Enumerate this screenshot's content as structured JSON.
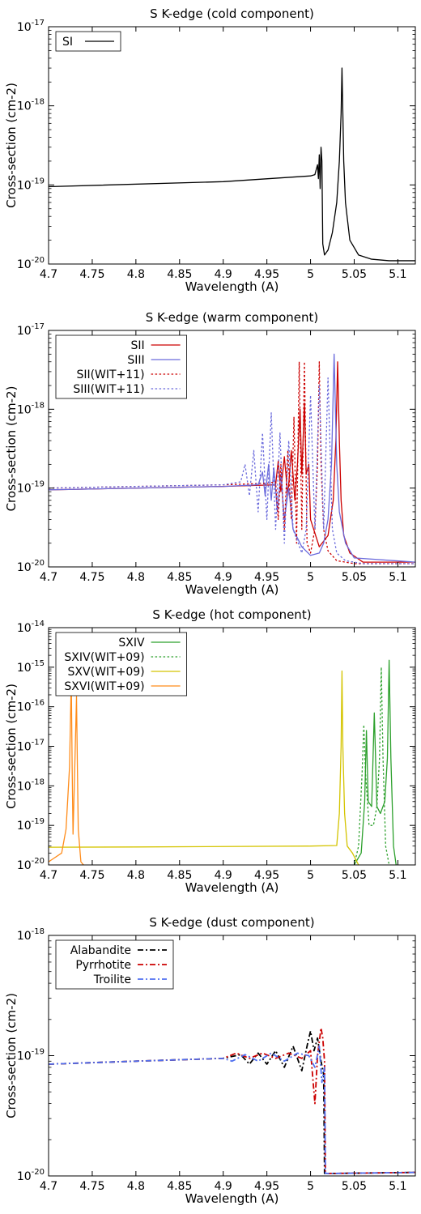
{
  "chart_data": [
    {
      "type": "line",
      "title": "S K-edge (cold component)",
      "xlabel": "Wavelength (A)",
      "ylabel": "Cross-section (cm-2)",
      "xlim": [
        4.7,
        5.12
      ],
      "ylim_exp": [
        -20,
        -17
      ],
      "yscale": "log",
      "legend": "top-left",
      "legend_align": "left",
      "xticks": [
        4.7,
        4.75,
        4.8,
        4.85,
        4.9,
        4.95,
        5.0,
        5.05,
        5.1
      ],
      "xtick_labels": [
        "4.7",
        "4.75",
        "4.8",
        "4.85",
        "4.9",
        "4.95",
        "5",
        "5.05",
        "5.1"
      ],
      "ytick_exps": [
        -20,
        -19,
        -18,
        -17
      ],
      "series": [
        {
          "name": "SI",
          "color": "#000000",
          "style": "solid",
          "x": [
            4.7,
            4.9,
            5.0,
            5.005,
            5.008,
            5.009,
            5.01,
            5.011,
            5.012,
            5.013,
            5.014,
            5.016,
            5.02,
            5.025,
            5.03,
            5.033,
            5.035,
            5.036,
            5.037,
            5.038,
            5.04,
            5.045,
            5.055,
            5.07,
            5.09,
            5.12
          ],
          "y": [
            9.5e-20,
            1.1e-19,
            1.3e-19,
            1.35e-19,
            1.8e-19,
            1.2e-19,
            2.4e-19,
            9e-20,
            3e-19,
            2e-19,
            1.8e-20,
            1.3e-20,
            1.5e-20,
            2.5e-20,
            6e-20,
            2e-19,
            8e-19,
            3e-18,
            8e-19,
            2e-19,
            6e-20,
            2e-20,
            1.3e-20,
            1.15e-20,
            1.1e-20,
            1.1e-20
          ]
        }
      ]
    },
    {
      "type": "line",
      "title": "S K-edge (warm component)",
      "xlabel": "Wavelength (A)",
      "ylabel": "Cross-section (cm-2)",
      "xlim": [
        4.7,
        5.12
      ],
      "ylim_exp": [
        -20,
        -17
      ],
      "yscale": "log",
      "legend": "top-left",
      "legend_align": "right",
      "xticks": [
        4.7,
        4.75,
        4.8,
        4.85,
        4.9,
        4.95,
        5.0,
        5.05,
        5.1
      ],
      "xtick_labels": [
        "4.7",
        "4.75",
        "4.8",
        "4.85",
        "4.9",
        "4.95",
        "5",
        "5.05",
        "5.1"
      ],
      "ytick_exps": [
        -20,
        -19,
        -18,
        -17
      ],
      "series": [
        {
          "name": "SII",
          "color": "#cc0000",
          "style": "solid",
          "x": [
            4.7,
            4.9,
            4.96,
            4.963,
            4.966,
            4.97,
            4.974,
            4.978,
            4.982,
            4.985,
            4.988,
            4.99,
            4.993,
            4.995,
            4.998,
            5.0,
            5.01,
            5.02,
            5.026,
            5.029,
            5.031,
            5.033,
            5.035,
            5.038,
            5.045,
            5.06,
            5.12
          ],
          "y": [
            9.5e-20,
            1.05e-19,
            1.1e-19,
            2.2e-19,
            9e-20,
            2.5e-19,
            8e-20,
            3e-19,
            7e-20,
            2e-19,
            1e-18,
            1.5e-19,
            1.2e-18,
            1.5e-19,
            2e-19,
            4e-20,
            1.8e-20,
            2.5e-20,
            7e-20,
            4e-19,
            4e-18,
            4e-19,
            7e-20,
            2.5e-20,
            1.5e-20,
            1.15e-20,
            1.15e-20
          ]
        },
        {
          "name": "SIII",
          "color": "#6b6bdc",
          "style": "solid",
          "x": [
            4.7,
            4.9,
            4.94,
            4.945,
            4.948,
            4.952,
            4.955,
            4.958,
            4.962,
            4.966,
            4.97,
            4.975,
            4.98,
            4.99,
            5.0,
            5.01,
            5.015,
            5.02,
            5.024,
            5.027,
            5.03,
            5.033,
            5.04,
            5.05,
            5.12
          ],
          "y": [
            9.5e-20,
            1.05e-19,
            1.1e-19,
            1.6e-19,
            8e-20,
            2e-19,
            7e-20,
            1.8e-19,
            5e-20,
            1.5e-19,
            4e-20,
            1e-19,
            3e-20,
            1.8e-20,
            1.4e-20,
            1.5e-20,
            2e-20,
            4e-20,
            2e-19,
            5e-18,
            2e-19,
            5e-20,
            2e-20,
            1.3e-20,
            1.15e-20
          ]
        },
        {
          "name": "SII(WIT+11)",
          "color": "#cc0000",
          "style": "dotted",
          "x": [
            4.7,
            4.9,
            4.95,
            4.96,
            4.963,
            4.966,
            4.97,
            4.974,
            4.978,
            4.981,
            4.984,
            4.987,
            4.99,
            4.993,
            4.996,
            5.0,
            5.005,
            5.008,
            5.01,
            5.012,
            5.015,
            5.02,
            5.03,
            5.05,
            5.12
          ],
          "y": [
            1e-19,
            1.1e-19,
            1.15e-19,
            1.2e-19,
            4e-20,
            2e-19,
            3e-20,
            3e-19,
            4e-20,
            8e-19,
            2e-20,
            4e-18,
            3e-20,
            4e-18,
            2e-20,
            1.5e-20,
            3e-20,
            2e-19,
            4e-18,
            2e-19,
            3e-20,
            1.6e-20,
            1.2e-20,
            1.1e-20,
            1.1e-20
          ]
        },
        {
          "name": "SIII(WIT+11)",
          "color": "#6b6bdc",
          "style": "dotted",
          "x": [
            4.7,
            4.9,
            4.92,
            4.925,
            4.93,
            4.935,
            4.94,
            4.945,
            4.95,
            4.955,
            4.96,
            4.965,
            4.97,
            4.975,
            4.98,
            4.99,
            4.995,
            5.0,
            5.005,
            5.01,
            5.015,
            5.02,
            5.025,
            5.03,
            5.04,
            5.06,
            5.12
          ],
          "y": [
            1e-19,
            1.1e-19,
            1.2e-19,
            2e-19,
            8e-20,
            3e-19,
            5e-20,
            5e-19,
            4e-20,
            9e-19,
            3e-20,
            5e-19,
            2e-20,
            4e-19,
            3e-20,
            1.5e-20,
            3e-20,
            1.5e-18,
            3e-20,
            2e-18,
            3e-20,
            2.5e-18,
            3e-20,
            1.5e-20,
            1.2e-20,
            1.1e-20,
            1.1e-20
          ]
        }
      ]
    },
    {
      "type": "line",
      "title": "S K-edge (hot component)",
      "xlabel": "Wavelength (A)",
      "ylabel": "Cross-section (cm-2)",
      "xlim": [
        4.7,
        5.12
      ],
      "ylim_exp": [
        -20,
        -14
      ],
      "yscale": "log",
      "legend": "top-left",
      "legend_align": "right",
      "xticks": [
        4.7,
        4.75,
        4.8,
        4.85,
        4.9,
        4.95,
        5.0,
        5.05,
        5.1
      ],
      "xtick_labels": [
        "4.7",
        "4.75",
        "4.8",
        "4.85",
        "4.9",
        "4.95",
        "5",
        "5.05",
        "5.1"
      ],
      "ytick_exps": [
        -20,
        -19,
        -18,
        -17,
        -16,
        -15,
        -14
      ],
      "series": [
        {
          "name": "SXIV",
          "color": "#2ca02c",
          "style": "solid",
          "x": [
            5.05,
            5.058,
            5.062,
            5.064,
            5.066,
            5.07,
            5.073,
            5.076,
            5.08,
            5.085,
            5.088,
            5.09,
            5.092,
            5.095,
            5.098
          ],
          "y": [
            1e-20,
            2e-20,
            4e-19,
            2.5e-17,
            4e-19,
            3e-19,
            7e-17,
            3e-19,
            2e-19,
            4e-19,
            5e-18,
            1.5e-15,
            5e-18,
            3e-20,
            1e-20
          ]
        },
        {
          "name": "SXIV(WIT+09)",
          "color": "#2ca02c",
          "style": "dotted",
          "x": [
            5.05,
            5.055,
            5.059,
            5.061,
            5.063,
            5.067,
            5.072,
            5.076,
            5.079,
            5.081,
            5.083,
            5.086,
            5.09
          ],
          "y": [
            1e-20,
            3e-20,
            2e-18,
            3.5e-17,
            2e-18,
            1e-19,
            1e-19,
            3e-19,
            5e-18,
            1e-15,
            5e-18,
            3e-20,
            1e-20
          ]
        },
        {
          "name": "SXV(WIT+09)",
          "color": "#d4c400",
          "style": "solid",
          "x": [
            4.7,
            4.8,
            5.0,
            5.03,
            5.033,
            5.035,
            5.036,
            5.037,
            5.039,
            5.042,
            5.048,
            5.055
          ],
          "y": [
            2.8e-20,
            2.85e-20,
            3e-20,
            3.1e-20,
            2e-19,
            1e-17,
            8e-16,
            1e-17,
            2e-19,
            3e-20,
            2e-20,
            1e-20
          ]
        },
        {
          "name": "SXVI(WIT+09)",
          "color": "#ff8c1a",
          "style": "solid",
          "x": [
            4.7,
            4.715,
            4.72,
            4.724,
            4.726,
            4.727,
            4.728,
            4.73,
            4.732,
            4.733,
            4.734,
            4.737,
            4.74
          ],
          "y": [
            1.2e-20,
            2e-20,
            8e-20,
            3e-18,
            5e-16,
            3e-18,
            6e-20,
            3e-18,
            1.8e-16,
            3e-18,
            8e-20,
            1.2e-20,
            1e-20
          ]
        }
      ]
    },
    {
      "type": "line",
      "title": "S K-edge (dust component)",
      "xlabel": "Wavelength (A)",
      "ylabel": "Cross-section (cm-2)",
      "xlim": [
        4.7,
        5.12
      ],
      "ylim_exp": [
        -20,
        -18
      ],
      "yscale": "log",
      "legend": "top-left",
      "legend_align": "right",
      "xticks": [
        4.7,
        4.75,
        4.8,
        4.85,
        4.9,
        4.95,
        5.0,
        5.05,
        5.1
      ],
      "xtick_labels": [
        "4.7",
        "4.75",
        "4.8",
        "4.85",
        "4.9",
        "4.95",
        "5",
        "5.05",
        "5.1"
      ],
      "ytick_exps": [
        -20,
        -19,
        -18
      ],
      "series": [
        {
          "name": "Alabandite",
          "color": "#000000",
          "style": "dashdot",
          "x": [
            4.7,
            4.8,
            4.9,
            4.92,
            4.93,
            4.94,
            4.95,
            4.96,
            4.97,
            4.98,
            4.99,
            4.997,
            5.0,
            5.004,
            5.008,
            5.012,
            5.015,
            5.016,
            5.017,
            5.03,
            5.12
          ],
          "y": [
            8.5e-20,
            9e-20,
            9.5e-20,
            1.02e-19,
            8.5e-20,
            1.05e-19,
            8.5e-20,
            1.1e-19,
            8e-20,
            1.2e-19,
            7.5e-20,
            1.3e-19,
            1.6e-19,
            1.1e-19,
            1.4e-19,
            9e-20,
            7e-20,
            1.05e-20,
            1.05e-20,
            1.05e-20,
            1.07e-20
          ]
        },
        {
          "name": "Pyrrhotite",
          "color": "#cc0000",
          "style": "dashdot",
          "x": [
            4.7,
            4.8,
            4.9,
            4.915,
            4.93,
            4.945,
            4.96,
            4.975,
            4.99,
            5.0,
            5.005,
            5.008,
            5.012,
            5.014,
            5.016,
            5.017,
            5.03,
            5.12
          ],
          "y": [
            8.5e-20,
            9e-20,
            9.5e-20,
            1.05e-19,
            9.5e-20,
            1.05e-19,
            9.5e-20,
            1.05e-19,
            9.5e-20,
            1.1e-19,
            4e-20,
            1e-19,
            1.7e-19,
            1.4e-19,
            9e-20,
            1.05e-20,
            1.05e-20,
            1.07e-20
          ]
        },
        {
          "name": "Troilite",
          "color": "#4f6ff0",
          "style": "dashdot",
          "x": [
            4.7,
            4.8,
            4.9,
            4.91,
            4.925,
            4.94,
            4.955,
            4.97,
            4.985,
            4.998,
            5.005,
            5.01,
            5.013,
            5.016,
            5.017,
            5.03,
            5.12
          ],
          "y": [
            8.5e-20,
            9e-20,
            9.5e-20,
            9e-20,
            1.02e-19,
            9e-20,
            1.05e-19,
            9e-20,
            1.05e-19,
            1e-19,
            8e-20,
            1.2e-19,
            6e-20,
            8e-20,
            1.05e-20,
            1.05e-20,
            1.07e-20
          ]
        }
      ]
    }
  ]
}
